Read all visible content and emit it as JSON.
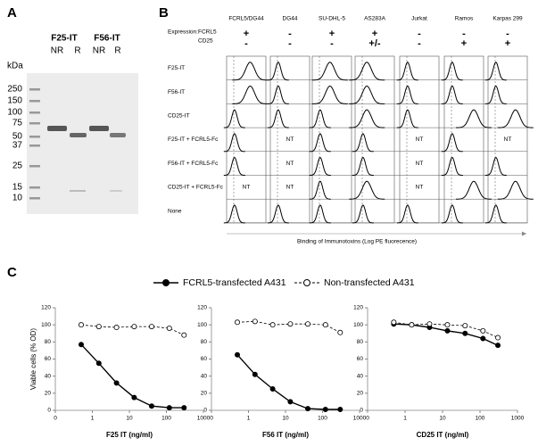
{
  "panel_a": {
    "label": "A",
    "unit": "kDa",
    "groups": [
      "F25-IT",
      "F56-IT"
    ],
    "lanes": [
      "NR",
      "R",
      "NR",
      "R"
    ],
    "markers": [
      250,
      150,
      100,
      75,
      50,
      37,
      25,
      15,
      10
    ]
  },
  "panel_b": {
    "label": "B",
    "expression_label": "Expression:",
    "markers": [
      "FCRL5",
      "CD25"
    ],
    "cell_lines": [
      "FCRL5/DG44",
      "DG44",
      "SU-DHL-5",
      "AS283A",
      "Jurkat",
      "Ramos",
      "Karpas 299"
    ],
    "expression": [
      [
        "+",
        "-",
        "+",
        "+",
        "-",
        "-",
        "-"
      ],
      [
        "-",
        "-",
        "-",
        "+/-",
        "-",
        "+",
        "+"
      ]
    ],
    "rows": [
      {
        "label": "F25-IT",
        "cells": [
          null,
          null,
          null,
          null,
          null,
          null,
          null
        ]
      },
      {
        "label": "F56-IT",
        "cells": [
          null,
          null,
          null,
          null,
          null,
          null,
          null
        ]
      },
      {
        "label": "CD25-IT",
        "cells": [
          null,
          null,
          null,
          null,
          null,
          null,
          null
        ]
      },
      {
        "label": "F25-IT + FCRL5-Fc",
        "cells": [
          null,
          "NT",
          null,
          null,
          "NT",
          null,
          "NT"
        ]
      },
      {
        "label": "F56-IT + FCRL5-Fc",
        "cells": [
          null,
          "NT",
          null,
          null,
          "NT",
          null,
          null
        ]
      },
      {
        "label": "CD25-IT + FCRL5-Fc",
        "cells": [
          "NT",
          "NT",
          null,
          null,
          "NT",
          null,
          null
        ]
      },
      {
        "label": "None",
        "cells": [
          null,
          null,
          null,
          null,
          null,
          null,
          null
        ]
      }
    ],
    "x_label": "Binding of Immunotoxins (Log PE fluorecence)"
  },
  "panel_c": {
    "label": "C"
  },
  "chart_data": [
    {
      "type": "line",
      "xlabel": "F25 IT (ng/ml)",
      "ylabel": "Viable cells (% OD)",
      "xscale": "log",
      "x": [
        0.5,
        1.5,
        4.5,
        13.5,
        40,
        120,
        300
      ],
      "series": [
        {
          "name": "FCRL5-transfected A431",
          "color": "#000000",
          "marker": "filled",
          "values": [
            77,
            55,
            32,
            15,
            5,
            3,
            3
          ]
        },
        {
          "name": "Non-transfected A431",
          "color": "#000000",
          "marker": "open",
          "values": [
            100,
            98,
            97,
            98,
            98,
            96,
            88
          ]
        }
      ],
      "xlim": [
        0.1,
        1000
      ],
      "xticks": [
        {
          "value": 0.1,
          "label": "0"
        },
        1,
        10,
        100,
        1000
      ],
      "ylim": [
        0,
        120
      ],
      "yticks": [
        0,
        20,
        40,
        60,
        80,
        100,
        120
      ]
    },
    {
      "type": "line",
      "xlabel": "F56 IT (ng/ml)",
      "xscale": "log",
      "x": [
        0.5,
        1.5,
        4.5,
        13.5,
        40,
        120,
        300
      ],
      "series": [
        {
          "color": "#000000",
          "marker": "filled",
          "values": [
            65,
            42,
            25,
            10,
            2,
            1,
            1
          ]
        },
        {
          "color": "#000000",
          "marker": "open",
          "values": [
            103,
            104,
            100,
            101,
            101,
            100,
            91
          ]
        }
      ],
      "xlim": [
        0.1,
        1000
      ],
      "xticks": [
        {
          "value": 0.1,
          "label": "0"
        },
        1,
        10,
        100,
        1000
      ],
      "ylim": [
        0,
        120
      ],
      "yticks": [
        0,
        20,
        40,
        60,
        80,
        100,
        120
      ]
    },
    {
      "type": "line",
      "xlabel": "CD25 IT (ng/ml)",
      "xscale": "log",
      "x": [
        0.5,
        1.5,
        4.5,
        13.5,
        40,
        120,
        300
      ],
      "series": [
        {
          "color": "#000000",
          "marker": "filled",
          "values": [
            101,
            100,
            97,
            93,
            90,
            84,
            76
          ]
        },
        {
          "color": "#000000",
          "marker": "open",
          "values": [
            103,
            100,
            101,
            100,
            99,
            93,
            85
          ]
        }
      ],
      "xlim": [
        0.1,
        1000
      ],
      "xticks": [
        {
          "value": 0.1,
          "label": "0"
        },
        1,
        10,
        100,
        1000
      ],
      "ylim": [
        0,
        120
      ],
      "yticks": [
        0,
        20,
        40,
        60,
        80,
        100,
        120
      ]
    }
  ]
}
